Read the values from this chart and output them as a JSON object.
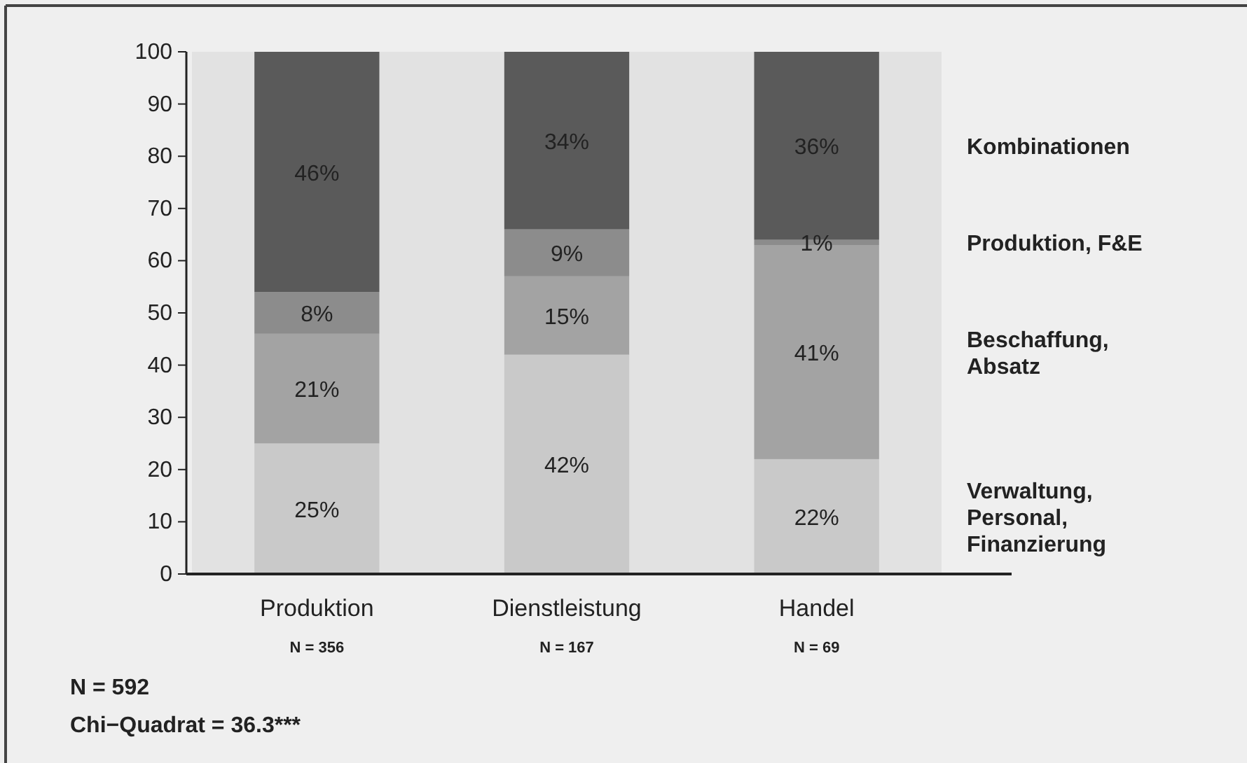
{
  "chart_data": {
    "type": "bar",
    "stacked": true,
    "categories": [
      "Produktion",
      "Dienstleistung",
      "Handel"
    ],
    "series": [
      {
        "name": "Verwaltung,\nPersonal,\nFinanzierung",
        "color": "#c9c9c9",
        "values": [
          25,
          42,
          22
        ],
        "value_labels": [
          "25%",
          "42%",
          "22%"
        ]
      },
      {
        "name": "Beschaffung,\nAbsatz",
        "color": "#a3a3a3",
        "values": [
          21,
          15,
          41
        ],
        "value_labels": [
          "21%",
          "15%",
          "41%"
        ]
      },
      {
        "name": "Produktion, F&E",
        "color": "#8c8c8c",
        "values": [
          8,
          9,
          1
        ],
        "value_labels": [
          "8%",
          "9%",
          "1%"
        ]
      },
      {
        "name": "Kombinationen",
        "color": "#5a5a5a",
        "values": [
          46,
          34,
          36
        ],
        "value_labels": [
          "46%",
          "34%",
          "36%"
        ]
      }
    ],
    "ylim": [
      0,
      100
    ],
    "yticks": [
      0,
      10,
      20,
      30,
      40,
      50,
      60,
      70,
      80,
      90,
      100
    ],
    "legend": "right",
    "annotations": [
      "N = 356",
      "N = 167",
      "N = 69",
      "N = 592",
      "Chi−Quadrat = 36.3***"
    ]
  }
}
